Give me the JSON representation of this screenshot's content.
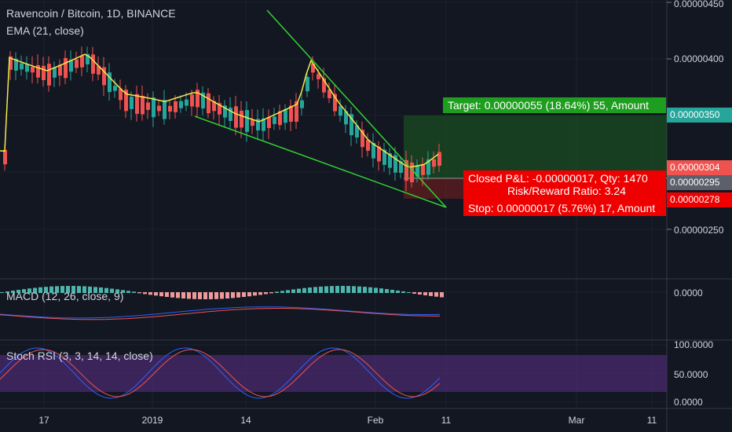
{
  "header": {
    "title": "Ravencoin / Bitcoin, 1D, BINANCE",
    "ema_label": "EMA (21, close)"
  },
  "indicators": {
    "macd_label": "MACD (12, 26, close, 9)",
    "stoch_label": "Stoch RSI (3, 3, 14, 14, close)"
  },
  "price_axis": {
    "ticks": [
      "0.00000450",
      "0.00000400",
      "0.00000250"
    ]
  },
  "macd_axis": {
    "ticks": [
      "0.0000"
    ]
  },
  "stoch_axis": {
    "ticks": [
      "100.0000",
      "50.0000",
      "0.0000"
    ]
  },
  "time_axis": {
    "ticks": [
      "17",
      "2019",
      "14",
      "Feb",
      "11",
      "Mar",
      "11"
    ]
  },
  "price_tags": {
    "target": "0.00000350",
    "last": "0.00000304",
    "entry": "0.00000295",
    "stop": "0.00000278"
  },
  "position": {
    "target_text": "Target: 0.00000055 (18.64%) 55, Amount",
    "pnl_text": "Closed P&L: -0.00000017, Qty: 1470",
    "rr_text": "Risk/Reward Ratio: 3.24",
    "stop_text": "Stop: 0.00000017 (5.76%) 17, Amount"
  },
  "colors": {
    "background": "#131722",
    "up": "#26a69a",
    "down": "#ef5350",
    "ema": "#f5e94a",
    "trendline": "#32d132",
    "target_zone": "#1b5e20",
    "stop_zone": "#7b1f1f",
    "stoch_band": "#4a2a6e"
  }
}
